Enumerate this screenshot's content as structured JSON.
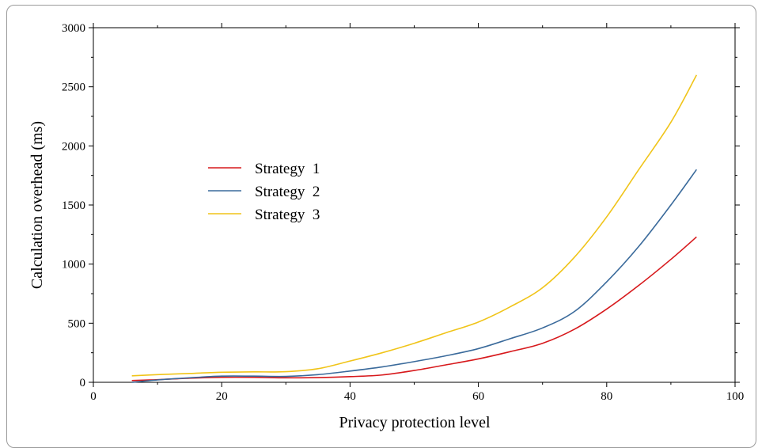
{
  "chart_data": {
    "type": "line",
    "title": "",
    "xlabel": "Privacy protection level",
    "ylabel": "Calculation overhead (ms)",
    "xlim": [
      0,
      100
    ],
    "ylim": [
      0,
      3000
    ],
    "xticks": [
      0,
      20,
      40,
      60,
      80,
      100
    ],
    "yticks": [
      0,
      500,
      1000,
      1500,
      2000,
      2500,
      3000
    ],
    "grid": false,
    "legend_position": "center-left",
    "series": [
      {
        "name": "Strategy  1",
        "color": "#d7191c",
        "x": [
          6,
          10,
          15,
          20,
          25,
          30,
          35,
          40,
          45,
          50,
          55,
          60,
          65,
          70,
          75,
          80,
          85,
          90,
          94
        ],
        "y": [
          15,
          22,
          35,
          42,
          42,
          38,
          40,
          48,
          62,
          100,
          148,
          198,
          260,
          330,
          450,
          620,
          820,
          1040,
          1230
        ]
      },
      {
        "name": "Strategy  2",
        "color": "#3a6a9b",
        "x": [
          6,
          10,
          15,
          20,
          25,
          30,
          35,
          40,
          45,
          50,
          55,
          60,
          65,
          70,
          75,
          80,
          85,
          90,
          94
        ],
        "y": [
          0,
          20,
          38,
          52,
          52,
          50,
          65,
          95,
          130,
          175,
          225,
          285,
          370,
          460,
          600,
          850,
          1150,
          1500,
          1800
        ]
      },
      {
        "name": "Strategy  3",
        "color": "#f0c419",
        "x": [
          6,
          10,
          15,
          20,
          25,
          30,
          35,
          40,
          45,
          50,
          55,
          60,
          65,
          70,
          75,
          80,
          85,
          90,
          94
        ],
        "y": [
          55,
          65,
          75,
          85,
          88,
          90,
          115,
          180,
          250,
          330,
          420,
          510,
          640,
          800,
          1060,
          1400,
          1800,
          2200,
          2600
        ]
      }
    ]
  }
}
